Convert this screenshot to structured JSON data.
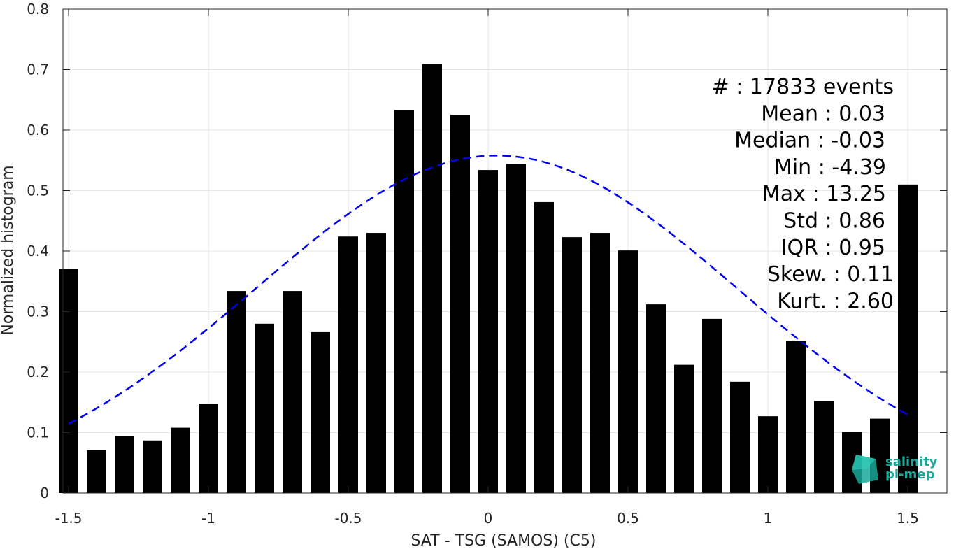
{
  "chart_data": {
    "type": "bar",
    "xlabel": "SAT - TSG (SAMOS) (C5)",
    "ylabel": "Normalized histogram",
    "xlim": [
      -1.52,
      1.64
    ],
    "ylim": [
      0,
      0.8
    ],
    "xticks": [
      -1.5,
      -1,
      -0.5,
      0,
      0.5,
      1,
      1.5
    ],
    "xtick_labels": [
      "-1.5",
      "-1",
      "-0.5",
      "0",
      "0.5",
      "1",
      "1.5"
    ],
    "yticks": [
      0,
      0.1,
      0.2,
      0.3,
      0.4,
      0.5,
      0.6,
      0.7,
      0.8
    ],
    "ytick_labels": [
      "0",
      "0.1",
      "0.2",
      "0.3",
      "0.4",
      "0.5",
      "0.6",
      "0.7",
      "0.8"
    ],
    "grid": true,
    "bar_color": "#000000",
    "bar_width": 0.07,
    "bars": {
      "x": [
        -1.5,
        -1.4,
        -1.3,
        -1.2,
        -1.1,
        -1.0,
        -0.9,
        -0.8,
        -0.7,
        -0.6,
        -0.5,
        -0.4,
        -0.3,
        -0.2,
        -0.1,
        0.0,
        0.1,
        0.2,
        0.3,
        0.4,
        0.5,
        0.6,
        0.7,
        0.8,
        0.9,
        1.0,
        1.1,
        1.2,
        1.3,
        1.4,
        1.5
      ],
      "values": [
        0.371,
        0.071,
        0.094,
        0.087,
        0.108,
        0.148,
        0.334,
        0.28,
        0.334,
        0.266,
        0.424,
        0.43,
        0.633,
        0.709,
        0.625,
        0.534,
        0.544,
        0.481,
        0.423,
        0.43,
        0.401,
        0.312,
        0.212,
        0.288,
        0.184,
        0.127,
        0.251,
        0.152,
        0.101,
        0.123,
        0.51
      ]
    },
    "fit_curve": {
      "style": "dashed",
      "color": "#0000ee",
      "mean": 0.03,
      "std": 0.86,
      "peak": 0.558,
      "x_range": [
        -1.5,
        1.5
      ]
    },
    "annotations": [
      "#  : 17833 events",
      "Mean : 0.03",
      "Median : -0.03",
      "Min : -4.39",
      "Max : 13.25",
      "Std : 0.86",
      "IQR : 0.95",
      "Skew. : 0.11",
      "Kurt. : 2.60"
    ]
  },
  "logo": {
    "line1": "salinity",
    "line2": "pi-mep",
    "color": "#1aa89a"
  }
}
